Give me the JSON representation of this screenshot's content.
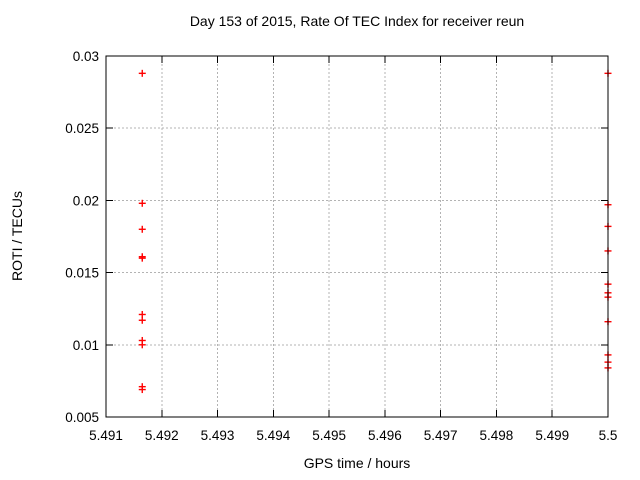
{
  "chart_data": {
    "type": "scatter",
    "title": "Day 153 of 2015, Rate Of TEC Index for receiver reun",
    "xlabel": "GPS time / hours",
    "ylabel": "ROTI / TECUs",
    "xlim": [
      5.491,
      5.5
    ],
    "ylim": [
      0.005,
      0.03
    ],
    "grid": true,
    "legend": "none",
    "marker": "plus",
    "xticks": {
      "values": [
        5.491,
        5.492,
        5.493,
        5.494,
        5.495,
        5.496,
        5.497,
        5.498,
        5.499,
        5.5
      ],
      "labels": [
        "5.491",
        "5.492",
        "5.493",
        "5.494",
        "5.495",
        "5.496",
        "5.497",
        "5.498",
        "5.499",
        "5.5"
      ]
    },
    "yticks": {
      "values": [
        0.005,
        0.01,
        0.015,
        0.02,
        0.025,
        0.03
      ],
      "labels": [
        "0.005",
        "0.01",
        "0.015",
        "0.02",
        "0.025",
        "0.03"
      ]
    },
    "series": [
      {
        "name": "ROTI",
        "points": [
          [
            5.49165,
            0.0288
          ],
          [
            5.49165,
            0.0198
          ],
          [
            5.49165,
            0.018
          ],
          [
            5.49165,
            0.0161
          ],
          [
            5.49165,
            0.016
          ],
          [
            5.49165,
            0.0121
          ],
          [
            5.49165,
            0.0117
          ],
          [
            5.49165,
            0.0103
          ],
          [
            5.49165,
            0.01
          ],
          [
            5.49165,
            0.0071
          ],
          [
            5.49165,
            0.0069
          ],
          [
            5.5,
            0.0288
          ],
          [
            5.5,
            0.0197
          ],
          [
            5.5,
            0.0182
          ],
          [
            5.5,
            0.0165
          ],
          [
            5.5,
            0.0142
          ],
          [
            5.5,
            0.0136
          ],
          [
            5.5,
            0.0133
          ],
          [
            5.5,
            0.0116
          ],
          [
            5.5,
            0.0093
          ],
          [
            5.5,
            0.0088
          ],
          [
            5.5,
            0.0084
          ]
        ]
      }
    ]
  },
  "colors": {
    "marker": "#ff0000",
    "axis": "#000000",
    "grid": "#b3b3b3",
    "background": "#ffffff",
    "text": "#000000"
  }
}
